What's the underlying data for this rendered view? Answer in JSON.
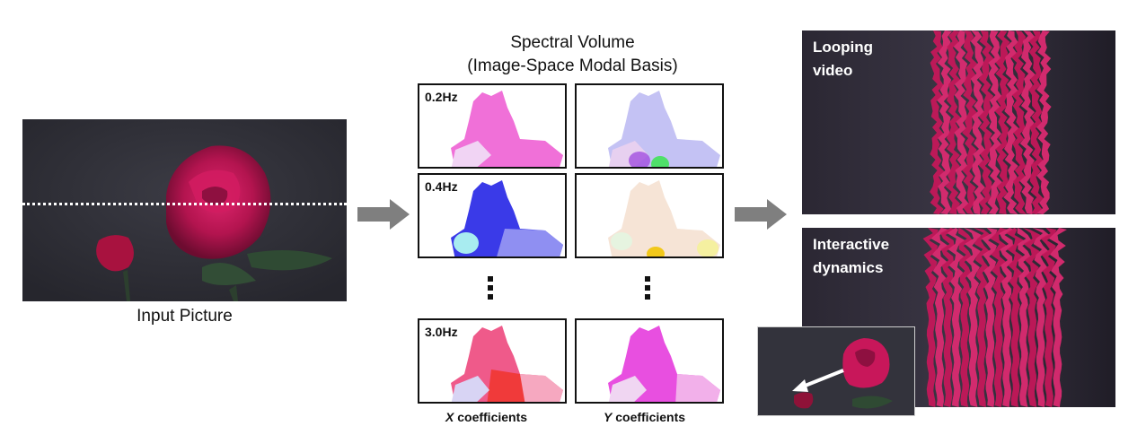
{
  "input": {
    "caption": "Input Picture"
  },
  "spectral": {
    "title_line1": "Spectral Volume",
    "title_line2": "(Image-Space Modal Basis)",
    "rows": [
      {
        "freq": "0.2Hz"
      },
      {
        "freq": "0.4Hz"
      },
      {
        "freq": "3.0Hz"
      }
    ],
    "x_label_var": "X",
    "x_label_rest": " coefficients",
    "y_label_var": "Y",
    "y_label_rest": " coefficients"
  },
  "outputs": {
    "looping_label": "Looping\nvideo",
    "interactive_label": "Interactive\ndynamics"
  },
  "colors": {
    "arrow": "#7f7f7f",
    "rose": "#c8175a",
    "dark_bg": "#2a2a33",
    "strip_bg": "#25222e"
  }
}
